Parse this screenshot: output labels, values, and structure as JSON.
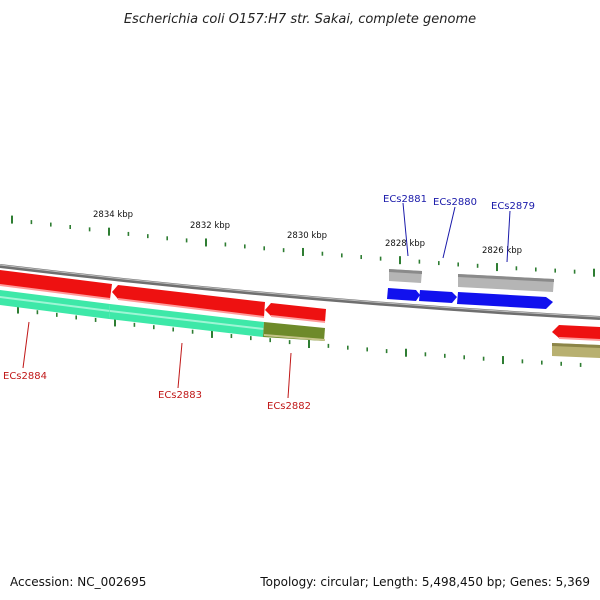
{
  "title": "Escherichia coli O157:H7 str. Sakai, complete genome",
  "footer": {
    "accession": "Accession: NC_002695",
    "summary": "Topology: circular; Length: 5,498,450 bp; Genes: 5,369"
  },
  "colors": {
    "backbone": "#7f7f7f",
    "tick": "#2e7d32",
    "forward_label": "#1a1aaa",
    "reverse_label": "#c01818",
    "cds_red": "#ee1111",
    "cds_blue": "#1111ee",
    "cds_gray": "#b5b5b5",
    "cds_teal": "#3ee8a8",
    "cds_olive": "#6e8a2a",
    "cds_tan": "#b8b070"
  },
  "ruler": [
    {
      "label": "2834 kbp"
    },
    {
      "label": "2832 kbp"
    },
    {
      "label": "2830 kbp"
    },
    {
      "label": "2828 kbp"
    },
    {
      "label": "2826 kbp"
    }
  ],
  "gene_labels": [
    {
      "name": "ECs2881",
      "strand": "forward"
    },
    {
      "name": "ECs2880",
      "strand": "forward"
    },
    {
      "name": "ECs2879",
      "strand": "forward"
    },
    {
      "name": "ECs2884",
      "strand": "reverse"
    },
    {
      "name": "ECs2883",
      "strand": "reverse"
    },
    {
      "name": "ECs2882",
      "strand": "reverse"
    }
  ]
}
